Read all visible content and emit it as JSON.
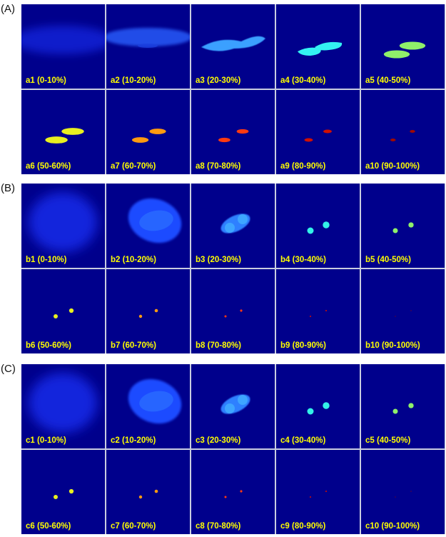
{
  "sections": [
    {
      "label": "(A)",
      "cells": [
        "a1 (0-10%)",
        "a2 (10-20%)",
        "a3 (20-30%)",
        "a4 (30-40%)",
        "a5 (40-50%)",
        "a6 (50-60%)",
        "a7 (60-70%)",
        "a8 (70-80%)",
        "a9 (80-90%)",
        "a10 (90-100%)"
      ]
    },
    {
      "label": "(B)",
      "cells": [
        "b1 (0-10%)",
        "b2 (10-20%)",
        "b3 (20-30%)",
        "b4 (30-40%)",
        "b5 (40-50%)",
        "b6 (50-60%)",
        "b7 (60-70%)",
        "b8 (70-80%)",
        "b9 (80-90%)",
        "b10 (90-100%)"
      ]
    },
    {
      "label": "(C)",
      "cells": [
        "c1 (0-10%)",
        "c2 (10-20%)",
        "c3 (20-30%)",
        "c4 (30-40%)",
        "c5 (40-50%)",
        "c6 (50-60%)",
        "c7 (60-70%)",
        "c8 (70-80%)",
        "c9 (80-90%)",
        "c10 (90-100%)"
      ]
    }
  ],
  "colors": {
    "background": "#00008c",
    "label_text": "#ffff00",
    "separator": "#c9cde0"
  }
}
